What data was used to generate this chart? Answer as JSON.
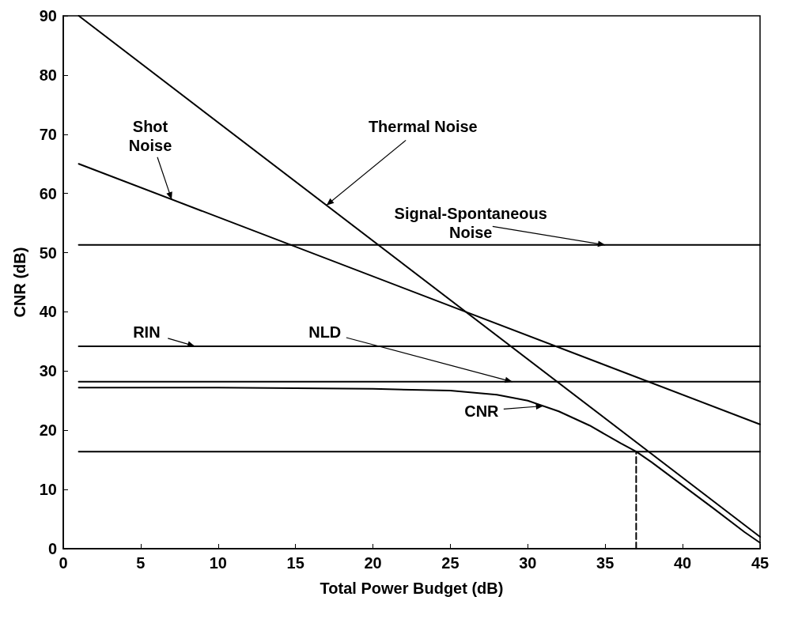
{
  "chart_data": {
    "type": "line",
    "xlabel": "Total Power Budget (dB)",
    "ylabel": "CNR (dB)",
    "xlim": [
      0,
      45
    ],
    "ylim": [
      0,
      90
    ],
    "xticks": [
      0,
      5,
      10,
      15,
      20,
      25,
      30,
      35,
      40,
      45
    ],
    "yticks": [
      0,
      10,
      20,
      30,
      40,
      50,
      60,
      70,
      80,
      90
    ],
    "grid": false,
    "marker": "none",
    "line_style": "solid",
    "series": [
      {
        "color": "#000000",
        "x": [
          1,
          45
        ],
        "values": [
          90,
          2
        ]
      },
      {
        "color": "#000000",
        "x": [
          1,
          45
        ],
        "values": [
          65,
          21
        ]
      },
      {
        "color": "#000000",
        "x": [
          1,
          45
        ],
        "values": [
          51.3,
          51.3
        ]
      },
      {
        "color": "#000000",
        "x": [
          1,
          45
        ],
        "values": [
          34.2,
          34.2
        ]
      },
      {
        "color": "#000000",
        "x": [
          1,
          45
        ],
        "values": [
          28.2,
          28.2
        ]
      },
      {
        "color": "#000000",
        "x": [
          1,
          45
        ],
        "values": [
          16.4,
          16.4
        ]
      },
      {
        "color": "#000000",
        "x": [
          1,
          10,
          20,
          25,
          28,
          30,
          32,
          34,
          36,
          37,
          38,
          40,
          42,
          44,
          45
        ],
        "values": [
          27.2,
          27.2,
          27,
          26.7,
          26,
          25,
          23.2,
          20.8,
          17.8,
          16.4,
          14.6,
          10.7,
          6.8,
          2.8,
          1
        ]
      },
      {
        "color": "#000000",
        "x": [
          37,
          37
        ],
        "values": [
          0,
          16.4
        ],
        "line_style": "dashed"
      }
    ],
    "annotations": [
      {
        "text": "Shot\nNoise",
        "x": 7,
        "y": 59
      },
      {
        "text": "Thermal Noise",
        "x": 17,
        "y": 58
      },
      {
        "text": "Signal-Spontaneous\nNoise",
        "x": 35,
        "y": 51.3
      },
      {
        "text": "RIN",
        "x": 8.5,
        "y": 34.2
      },
      {
        "text": "NLD",
        "x": 29,
        "y": 28.2
      },
      {
        "text": "CNR",
        "x": 31,
        "y": 24.1
      }
    ]
  }
}
